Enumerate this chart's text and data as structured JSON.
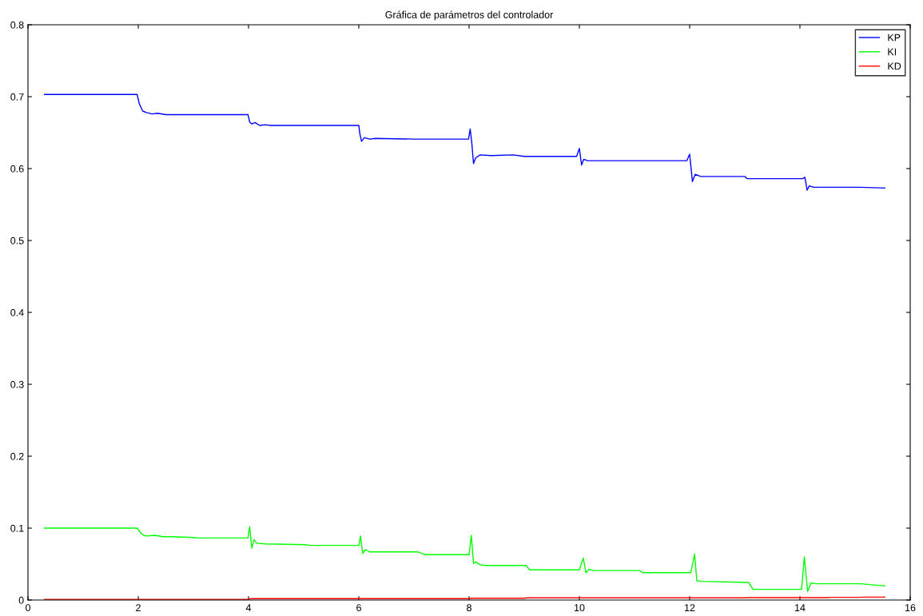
{
  "chart_data": {
    "type": "line",
    "title": "Gráfica de parámetros del controlador",
    "xlim": [
      0,
      16
    ],
    "xticks": [
      0,
      2,
      4,
      6,
      8,
      10,
      12,
      14,
      16
    ],
    "ylim": [
      0,
      0.8
    ],
    "yticks": [
      0,
      0.1,
      0.2,
      0.3,
      0.4,
      0.5,
      0.6,
      0.7,
      0.8
    ],
    "grid": false,
    "legend": "top right",
    "marker": "none",
    "line_style": "solid",
    "series": [
      {
        "name": "KP",
        "color": "#0000ff",
        "x": [
          0.3,
          1.98,
          2.02,
          2.08,
          2.15,
          2.25,
          2.35,
          2.5,
          3.99,
          4.02,
          4.06,
          4.12,
          4.2,
          4.3,
          4.4,
          6.0,
          6.02,
          6.05,
          6.1,
          6.2,
          6.3,
          7.0,
          7.99,
          8.02,
          8.05,
          8.08,
          8.12,
          8.2,
          8.4,
          8.8,
          9.0,
          9.95,
          10.0,
          10.04,
          10.08,
          10.15,
          10.3,
          11.0,
          11.95,
          12.0,
          12.05,
          12.1,
          12.2,
          13.0,
          13.04,
          14.05,
          14.09,
          14.13,
          14.17,
          14.25,
          15.1,
          15.54
        ],
        "values": [
          0.703,
          0.703,
          0.69,
          0.68,
          0.678,
          0.676,
          0.677,
          0.675,
          0.675,
          0.665,
          0.662,
          0.664,
          0.66,
          0.661,
          0.66,
          0.66,
          0.648,
          0.638,
          0.643,
          0.641,
          0.642,
          0.641,
          0.641,
          0.655,
          0.635,
          0.607,
          0.615,
          0.619,
          0.618,
          0.619,
          0.617,
          0.617,
          0.628,
          0.605,
          0.613,
          0.611,
          0.611,
          0.611,
          0.611,
          0.62,
          0.582,
          0.592,
          0.589,
          0.589,
          0.586,
          0.586,
          0.588,
          0.57,
          0.576,
          0.574,
          0.574,
          0.573
        ]
      },
      {
        "name": "KI",
        "color": "#00ff00",
        "x": [
          0.3,
          1.98,
          2.05,
          2.1,
          2.15,
          2.3,
          2.45,
          2.6,
          3.01,
          3.1,
          3.99,
          4.02,
          4.06,
          4.1,
          4.15,
          4.3,
          5.04,
          5.1,
          6.0,
          6.03,
          6.07,
          6.12,
          6.2,
          6.4,
          7.07,
          7.2,
          8.0,
          8.04,
          8.08,
          8.12,
          8.2,
          8.3,
          9.03,
          9.1,
          10.0,
          10.07,
          10.12,
          10.18,
          10.25,
          11.09,
          11.15,
          12.02,
          12.09,
          12.13,
          12.2,
          13.07,
          13.15,
          14.03,
          14.08,
          14.14,
          14.2,
          14.3,
          15.1,
          15.54
        ],
        "values": [
          0.1,
          0.1,
          0.093,
          0.09,
          0.089,
          0.09,
          0.088,
          0.088,
          0.087,
          0.0863,
          0.0863,
          0.102,
          0.072,
          0.084,
          0.079,
          0.078,
          0.077,
          0.076,
          0.076,
          0.089,
          0.065,
          0.07,
          0.067,
          0.067,
          0.067,
          0.063,
          0.063,
          0.09,
          0.051,
          0.053,
          0.049,
          0.048,
          0.048,
          0.042,
          0.042,
          0.0585,
          0.038,
          0.043,
          0.041,
          0.041,
          0.038,
          0.038,
          0.064,
          0.027,
          0.026,
          0.0244,
          0.0148,
          0.0148,
          0.06,
          0.012,
          0.0236,
          0.0226,
          0.0226,
          0.0197
        ]
      },
      {
        "name": "KD",
        "color": "#ff0000",
        "x": [
          0.3,
          3.99,
          4.05,
          8.0,
          8.05,
          9.0,
          9.05,
          13.0,
          13.05,
          14.5,
          14.55,
          15.1,
          15.15,
          15.54
        ],
        "values": [
          0.001,
          0.001,
          0.002,
          0.002,
          0.0025,
          0.0025,
          0.003,
          0.003,
          0.0033,
          0.0033,
          0.0037,
          0.0037,
          0.004,
          0.004
        ]
      }
    ]
  }
}
